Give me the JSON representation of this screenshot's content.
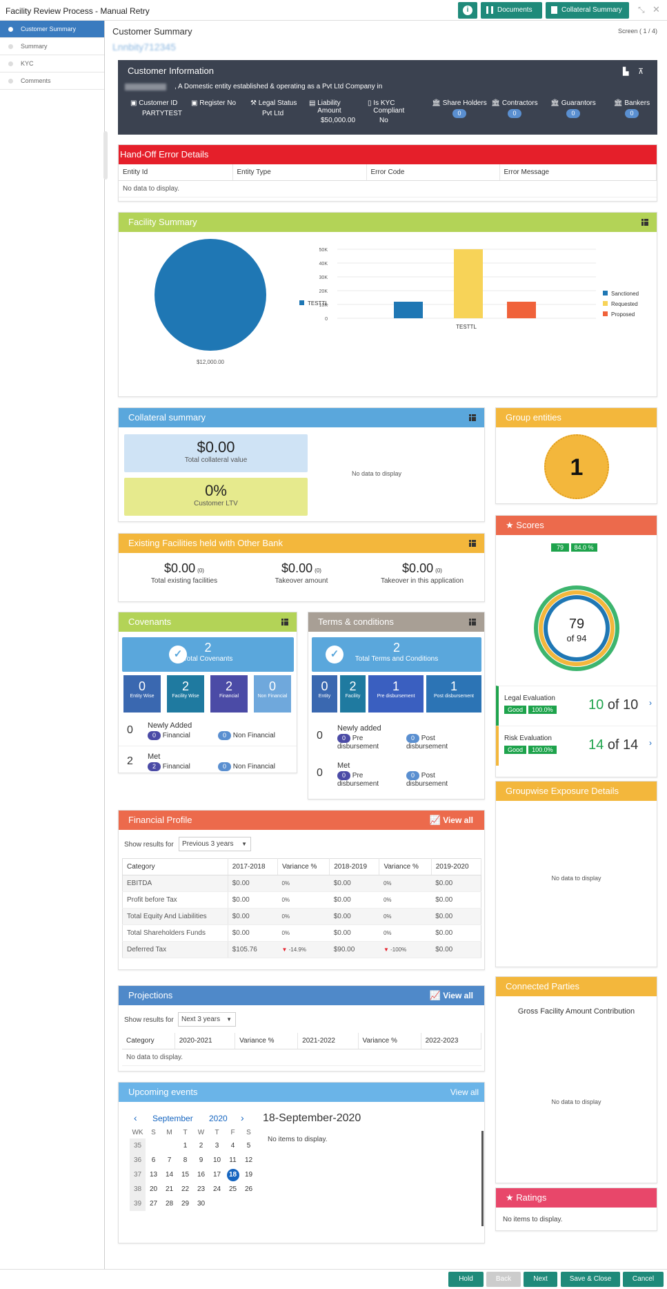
{
  "window": {
    "title": "Facility Review Process - Manual Retry",
    "btn_documents": "Documents",
    "btn_collateral": "Collateral Summary"
  },
  "sidebar": {
    "items": [
      {
        "label": "Customer Summary"
      },
      {
        "label": "Summary"
      },
      {
        "label": "KYC"
      },
      {
        "label": "Comments"
      }
    ]
  },
  "header": {
    "page_title": "Customer Summary",
    "screen": "Screen ( 1 / 4)",
    "subtitle": "Lnnbity712345"
  },
  "customer": {
    "heading": "Customer Information",
    "description": ", A Domestic entity established & operating as a Pvt Ltd Company in",
    "customer_id_label": "Customer ID",
    "customer_id": "PARTYTEST",
    "register_no_label": "Register No",
    "legal_status_label": "Legal Status",
    "legal_status": "Pvt Ltd",
    "liability_label": "Liability Amount",
    "liability": "$50,000.00",
    "kyc_label": "Is KYC Compliant",
    "kyc": "No",
    "counts": [
      {
        "label": "Share Holders",
        "value": "0"
      },
      {
        "label": "Contractors",
        "value": "0"
      },
      {
        "label": "Guarantors",
        "value": "0"
      },
      {
        "label": "Bankers",
        "value": "0"
      }
    ]
  },
  "handoff": {
    "heading": "Hand-Off Error Details",
    "columns": [
      "Entity Id",
      "Entity Type",
      "Error Code",
      "Error Message"
    ],
    "empty": "No data to display."
  },
  "facility_summary": {
    "heading": "Facility Summary",
    "pie_legend": "TESTTL",
    "pie_value": "$12,000.00",
    "legend": [
      {
        "name": "Sanctioned",
        "color": "#1f77b4"
      },
      {
        "name": "Requested",
        "color": "#f7d358"
      },
      {
        "name": "Proposed",
        "color": "#f0623a"
      }
    ]
  },
  "chart_data": [
    {
      "type": "pie",
      "categories": [
        "TESTTL"
      ],
      "values": [
        12000
      ],
      "title": "",
      "labels": [
        "$12,000.00"
      ]
    },
    {
      "type": "bar",
      "categories": [
        "TESTTL"
      ],
      "series": [
        {
          "name": "Sanctioned",
          "values": [
            12000
          ]
        },
        {
          "name": "Requested",
          "values": [
            50000
          ]
        },
        {
          "name": "Proposed",
          "values": [
            12000
          ]
        }
      ],
      "yticks": [
        "0",
        "10K",
        "20K",
        "30K",
        "40K",
        "50K"
      ],
      "ylim": [
        0,
        50000
      ],
      "legend": "right"
    }
  ],
  "collateral": {
    "heading": "Collateral summary",
    "value": "$0.00",
    "value_label": "Total collateral value",
    "ltv": "0%",
    "ltv_label": "Customer LTV",
    "empty": "No data to display"
  },
  "group_entities": {
    "heading": "Group entities",
    "count": "1"
  },
  "existing": {
    "heading": "Existing Facilities held with Other Bank",
    "items": [
      {
        "value": "$0.00",
        "count": "(0)",
        "label": "Total existing facilities"
      },
      {
        "value": "$0.00",
        "count": "(0)",
        "label": "Takeover amount"
      },
      {
        "value": "$0.00",
        "count": "(0)",
        "label": "Takeover in this application"
      }
    ]
  },
  "scores": {
    "heading": "Scores",
    "score": "79",
    "pct": "84.0 %",
    "center_value": "79",
    "center_of": "of 94",
    "evaluations": [
      {
        "title": "Legal Evaluation",
        "status": "Good",
        "pct": "100.0%",
        "value": "10",
        "of": "of 10"
      },
      {
        "title": "Risk Evaluation",
        "status": "Good",
        "pct": "100.0%",
        "value": "14",
        "of": "of 14"
      }
    ]
  },
  "covenants": {
    "heading": "Covenants",
    "total": "2",
    "total_label": "Total Covenants",
    "tiles": [
      {
        "value": "0",
        "label": "Entity Wise"
      },
      {
        "value": "2",
        "label": "Facility Wise"
      },
      {
        "value": "2",
        "label": "Financial"
      },
      {
        "value": "0",
        "label": "Non Financial"
      }
    ],
    "rows": [
      {
        "count": "0",
        "title": "Newly Added",
        "a_count": "0",
        "a_label": "Financial",
        "b_count": "0",
        "b_label": "Non Financial"
      },
      {
        "count": "2",
        "title": "Met",
        "a_count": "2",
        "a_label": "Financial",
        "b_count": "0",
        "b_label": "Non Financial"
      }
    ]
  },
  "terms": {
    "heading": "Terms & conditions",
    "total": "2",
    "total_label": "Total Terms and Conditions",
    "tiles": [
      {
        "value": "0",
        "label": "Entity"
      },
      {
        "value": "2",
        "label": "Facility"
      },
      {
        "value": "1",
        "label": "Pre disbursement"
      },
      {
        "value": "1",
        "label": "Post disbursement"
      }
    ],
    "rows": [
      {
        "count": "0",
        "title": "Newly added",
        "a_count": "0",
        "a_label": "Pre disbursement",
        "b_count": "0",
        "b_label": "Post disbursement"
      },
      {
        "count": "0",
        "title": "Met",
        "a_count": "0",
        "a_label": "Pre disbursement",
        "b_count": "0",
        "b_label": "Post disbursement"
      }
    ]
  },
  "groupwise": {
    "heading": "Groupwise Exposure Details",
    "empty": "No data to display"
  },
  "financial": {
    "heading": "Financial Profile",
    "view_all": "View all",
    "show_label": "Show results for",
    "period": "Previous 3 years",
    "columns": [
      "Category",
      "2017-2018",
      "Variance %",
      "2018-2019",
      "Variance %",
      "2019-2020"
    ],
    "rows": [
      [
        "EBITDA",
        "$0.00",
        "0%",
        "$0.00",
        "0%",
        "$0.00"
      ],
      [
        "Profit before Tax",
        "$0.00",
        "0%",
        "$0.00",
        "0%",
        "$0.00"
      ],
      [
        "Total Equity And Liabilities",
        "$0.00",
        "0%",
        "$0.00",
        "0%",
        "$0.00"
      ],
      [
        "Total Shareholders Funds",
        "$0.00",
        "0%",
        "$0.00",
        "0%",
        "$0.00"
      ],
      [
        "Deferred Tax",
        "$105.76",
        "-14.9%",
        "$90.00",
        "-100%",
        "$0.00"
      ]
    ]
  },
  "projections": {
    "heading": "Projections",
    "view_all": "View all",
    "show_label": "Show results for",
    "period": "Next 3 years",
    "columns": [
      "Category",
      "2020-2021",
      "Variance %",
      "2021-2022",
      "Variance %",
      "2022-2023"
    ],
    "empty": "No data to display."
  },
  "connected": {
    "heading": "Connected Parties",
    "subheading": "Gross Facility Amount Contribution",
    "empty": "No data to display"
  },
  "events": {
    "heading": "Upcoming events",
    "view_all": "View all",
    "month": "September",
    "year": "2020",
    "date_title": "18-September-2020",
    "empty": "No items to display.",
    "weekdays": [
      "WK",
      "S",
      "M",
      "T",
      "W",
      "T",
      "F",
      "S"
    ],
    "weeks": [
      [
        "35",
        "",
        "",
        "1",
        "2",
        "3",
        "4",
        "5"
      ],
      [
        "36",
        "6",
        "7",
        "8",
        "9",
        "10",
        "11",
        "12"
      ],
      [
        "37",
        "13",
        "14",
        "15",
        "16",
        "17",
        "18",
        "19"
      ],
      [
        "38",
        "20",
        "21",
        "22",
        "23",
        "24",
        "25",
        "26"
      ],
      [
        "39",
        "27",
        "28",
        "29",
        "30",
        "",
        "",
        ""
      ]
    ],
    "selected": "18"
  },
  "ratings": {
    "heading": "Ratings",
    "empty": "No items to display."
  },
  "footer": {
    "hold": "Hold",
    "back": "Back",
    "next": "Next",
    "save_close": "Save & Close",
    "cancel": "Cancel"
  }
}
